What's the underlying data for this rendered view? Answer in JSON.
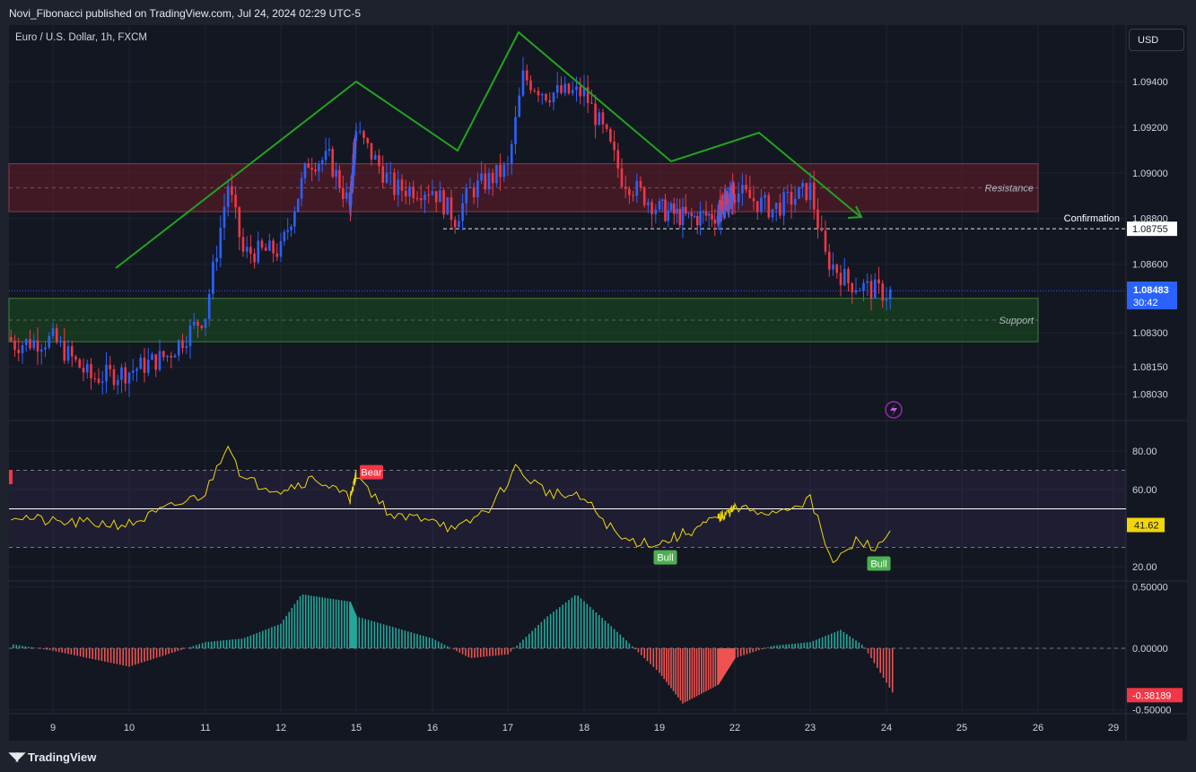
{
  "header": {
    "publisher": "Novi_Fibonacci published on TradingView.com, Jul 24, 2024 02:29 UTC-5",
    "symbol": "Euro / U.S. Dollar, 1h, FXCM",
    "currency_button": "USD",
    "brand": "TradingView"
  },
  "colors": {
    "bull": "#2962ff",
    "bear": "#f23645",
    "rsi_line": "#f0d60a",
    "pattern_line": "#22a31f",
    "resistance_zone": "#7a1c2b",
    "support_zone": "#1b5e20",
    "hist_pos": "#26a69a",
    "hist_neg": "#ef5350"
  },
  "chart_data": [
    {
      "type": "candlestick",
      "title": "Euro / U.S. Dollar, 1h, FXCM",
      "x_ticks": [
        "9",
        "10",
        "11",
        "12",
        "15",
        "16",
        "17",
        "18",
        "19",
        "22",
        "23",
        "24",
        "25",
        "26",
        "29"
      ],
      "y_ticks": [
        "1.09400",
        "1.09200",
        "1.09000",
        "1.08800",
        "1.08600",
        "1.08300",
        "1.08150",
        "1.08030"
      ],
      "ylim": [
        1.0796,
        1.0975
      ],
      "price_path": [
        {
          "x": "8",
          "y": 1.084
        },
        {
          "x": "8.5",
          "y": 1.0825
        },
        {
          "x": "9",
          "y": 1.0827
        },
        {
          "x": "9.5",
          "y": 1.081
        },
        {
          "x": "10",
          "y": 1.0813
        },
        {
          "x": "10.5",
          "y": 1.082
        },
        {
          "x": "11",
          "y": 1.0838
        },
        {
          "x": "11.3",
          "y": 1.0895
        },
        {
          "x": "11.5",
          "y": 1.0865
        },
        {
          "x": "12",
          "y": 1.0866
        },
        {
          "x": "12.4",
          "y": 1.0905
        },
        {
          "x": "12.7",
          "y": 1.0906
        },
        {
          "x": "13",
          "y": 1.0885
        },
        {
          "x": "15",
          "y": 1.0918
        },
        {
          "x": "15.5",
          "y": 1.0893
        },
        {
          "x": "16",
          "y": 1.0893
        },
        {
          "x": "16.3",
          "y": 1.088
        },
        {
          "x": "16.5",
          "y": 1.0892
        },
        {
          "x": "17",
          "y": 1.0902
        },
        {
          "x": "17.2",
          "y": 1.0942
        },
        {
          "x": "17.5",
          "y": 1.0935
        },
        {
          "x": "18",
          "y": 1.0935
        },
        {
          "x": "18.3",
          "y": 1.0915
        },
        {
          "x": "18.5",
          "y": 1.0898
        },
        {
          "x": "19",
          "y": 1.0884
        },
        {
          "x": "19.5",
          "y": 1.088
        },
        {
          "x": "20",
          "y": 1.0882
        },
        {
          "x": "22",
          "y": 1.0892
        },
        {
          "x": "22.5",
          "y": 1.0884
        },
        {
          "x": "23",
          "y": 1.0893
        },
        {
          "x": "23.2",
          "y": 1.0863
        },
        {
          "x": "23.5",
          "y": 1.0852
        },
        {
          "x": "24",
          "y": 1.0847
        },
        {
          "x": "24.1",
          "y": 1.08483
        }
      ],
      "zones": [
        {
          "label": "Resistance",
          "from": 1.0883,
          "to": 1.0904
        },
        {
          "label": "Support",
          "from": 1.0826,
          "to": 1.0845
        }
      ],
      "confirmation": {
        "label": "Confirmation",
        "value": "1.08755"
      },
      "last_price": "1.08483",
      "countdown": "30:42",
      "pattern": "head-and-shoulders"
    },
    {
      "type": "line",
      "title": "",
      "y_ticks": [
        "80.00",
        "60.00",
        "20.00"
      ],
      "ylim": [
        14,
        92
      ],
      "bands": [
        70,
        50,
        30
      ],
      "last_value": "41.62",
      "labels": [
        {
          "text": "Bear",
          "x": "15.2"
        },
        {
          "text": "Bull",
          "x": "19.1"
        },
        {
          "text": "Bull",
          "x": "23.9"
        }
      ],
      "series": [
        {
          "values": [
            {
              "x": "8",
              "y": 50
            },
            {
              "x": "9",
              "y": 43
            },
            {
              "x": "10",
              "y": 42
            },
            {
              "x": "11",
              "y": 58
            },
            {
              "x": "11.3",
              "y": 85
            },
            {
              "x": "11.5",
              "y": 65
            },
            {
              "x": "12",
              "y": 60
            },
            {
              "x": "12.5",
              "y": 66
            },
            {
              "x": "13",
              "y": 55
            },
            {
              "x": "15",
              "y": 68
            },
            {
              "x": "15.5",
              "y": 45
            },
            {
              "x": "16",
              "y": 46
            },
            {
              "x": "16.3",
              "y": 38
            },
            {
              "x": "16.8",
              "y": 52
            },
            {
              "x": "17.1",
              "y": 71
            },
            {
              "x": "17.5",
              "y": 59
            },
            {
              "x": "18",
              "y": 55
            },
            {
              "x": "18.5",
              "y": 34
            },
            {
              "x": "19",
              "y": 32
            },
            {
              "x": "19.5",
              "y": 38
            },
            {
              "x": "20",
              "y": 45
            },
            {
              "x": "22",
              "y": 50
            },
            {
              "x": "22.5",
              "y": 48
            },
            {
              "x": "23",
              "y": 55
            },
            {
              "x": "23.3",
              "y": 21
            },
            {
              "x": "23.6",
              "y": 33
            },
            {
              "x": "23.9",
              "y": 30
            },
            {
              "x": "24.1",
              "y": 41.62
            }
          ]
        }
      ]
    },
    {
      "type": "bar",
      "title": "",
      "y_ticks": [
        "0.50000",
        "0.00000",
        "-0.50000"
      ],
      "ylim": [
        -0.56,
        0.55
      ],
      "last_value": "-0.38189",
      "series": [
        {
          "values": [
            {
              "x": "8",
              "y": 0.08
            },
            {
              "x": "9",
              "y": -0.02
            },
            {
              "x": "10",
              "y": -0.15
            },
            {
              "x": "11",
              "y": 0.05
            },
            {
              "x": "11.5",
              "y": 0.08
            },
            {
              "x": "12",
              "y": 0.2
            },
            {
              "x": "12.3",
              "y": 0.44
            },
            {
              "x": "13",
              "y": 0.38
            },
            {
              "x": "15",
              "y": 0.26
            },
            {
              "x": "16",
              "y": 0.08
            },
            {
              "x": "16.5",
              "y": -0.08
            },
            {
              "x": "17",
              "y": -0.05
            },
            {
              "x": "17.5",
              "y": 0.25
            },
            {
              "x": "17.9",
              "y": 0.44
            },
            {
              "x": "18.5",
              "y": 0.1
            },
            {
              "x": "19",
              "y": -0.2
            },
            {
              "x": "19.4",
              "y": -0.45
            },
            {
              "x": "20",
              "y": -0.3
            },
            {
              "x": "22",
              "y": -0.08
            },
            {
              "x": "22.5",
              "y": 0.02
            },
            {
              "x": "23",
              "y": 0.05
            },
            {
              "x": "23.4",
              "y": 0.15
            },
            {
              "x": "23.7",
              "y": 0.02
            },
            {
              "x": "24.1",
              "y": -0.38
            }
          ]
        }
      ]
    }
  ]
}
